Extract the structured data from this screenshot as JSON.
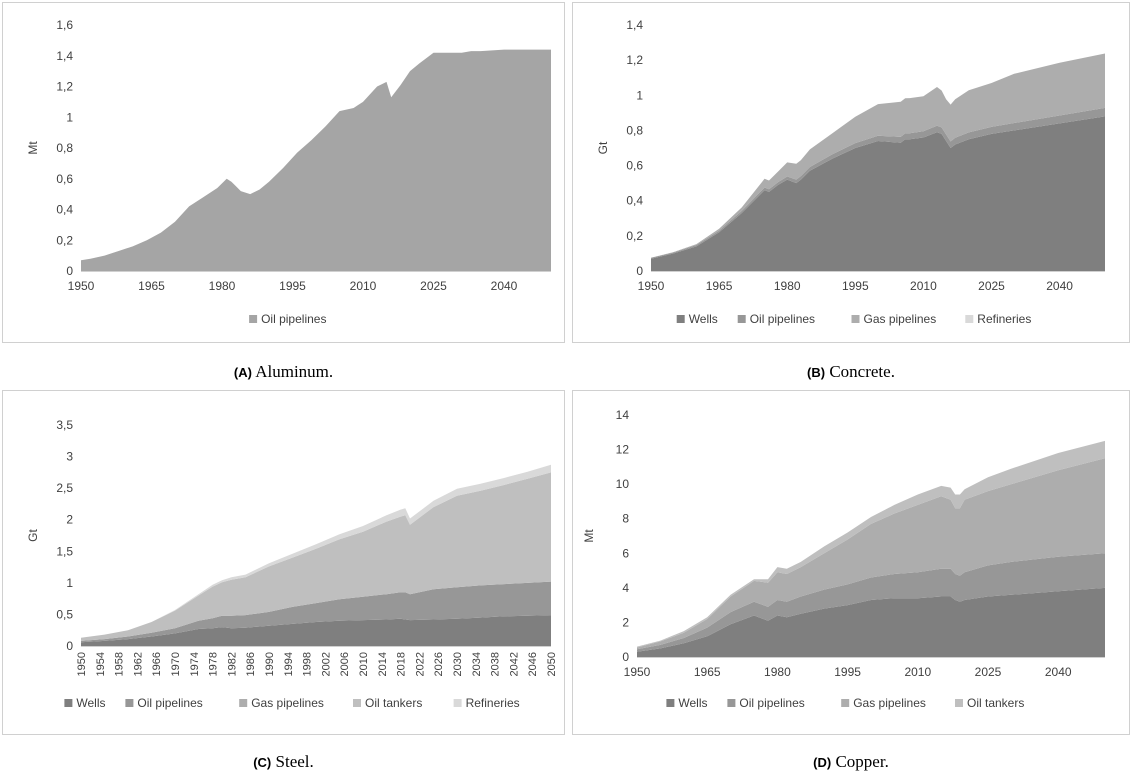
{
  "figures": [
    {
      "caption_letter": "(A)",
      "caption_text": "Aluminum."
    },
    {
      "caption_letter": "(B)",
      "caption_text": "Concrete."
    },
    {
      "caption_letter": "(C)",
      "caption_text": "Steel."
    },
    {
      "caption_letter": "(D)",
      "caption_text": "Copper."
    }
  ],
  "colors": {
    "Wells": "#7f7f7f",
    "Oil pipelines": "#979797",
    "Gas pipelines": "#adadad",
    "Oil tankers": "#bfbfbf",
    "Refineries": "#d9d9d9",
    "oil_pipelines_single": "#a5a5a5"
  },
  "chart_data": [
    {
      "type": "area",
      "stacked": true,
      "ylabel": "Mt",
      "xlabel": "",
      "title": "",
      "ylim": [
        0,
        1.6
      ],
      "yticks": [
        "0",
        "0,2",
        "0,4",
        "0,6",
        "0,8",
        "1",
        "1,2",
        "1,4",
        "1,6"
      ],
      "xlim": [
        1950,
        2050
      ],
      "xticks": [
        "1950",
        "1965",
        "1980",
        "1995",
        "2010",
        "2025",
        "2040"
      ],
      "x": [
        1950,
        1952,
        1955,
        1958,
        1961,
        1964,
        1967,
        1970,
        1973,
        1976,
        1979,
        1980,
        1981,
        1982,
        1983,
        1984,
        1985,
        1986,
        1988,
        1990,
        1993,
        1996,
        1999,
        2002,
        2005,
        2008,
        2009,
        2010,
        2013,
        2015,
        2016,
        2017,
        2018,
        2020,
        2022,
        2025,
        2028,
        2031,
        2033,
        2035,
        2040,
        2045,
        2050
      ],
      "legend": "bottom",
      "series": [
        {
          "name": "Oil pipelines",
          "values": [
            0.07,
            0.08,
            0.1,
            0.13,
            0.16,
            0.2,
            0.25,
            0.32,
            0.42,
            0.48,
            0.54,
            0.57,
            0.6,
            0.58,
            0.55,
            0.52,
            0.51,
            0.5,
            0.53,
            0.58,
            0.67,
            0.77,
            0.85,
            0.94,
            1.04,
            1.06,
            1.08,
            1.1,
            1.2,
            1.23,
            1.13,
            1.17,
            1.21,
            1.3,
            1.35,
            1.42,
            1.42,
            1.42,
            1.43,
            1.43,
            1.44,
            1.44,
            1.44
          ]
        }
      ]
    },
    {
      "type": "area",
      "stacked": true,
      "ylabel": "Gt",
      "xlabel": "",
      "title": "",
      "ylim": [
        0,
        1.4
      ],
      "yticks": [
        "0",
        "0,2",
        "0,4",
        "0,6",
        "0,8",
        "1",
        "1,2",
        "1,4"
      ],
      "xlim": [
        1950,
        2050
      ],
      "xticks": [
        "1950",
        "1965",
        "1980",
        "1995",
        "2010",
        "2025",
        "2040"
      ],
      "x": [
        1950,
        1955,
        1960,
        1965,
        1970,
        1975,
        1976,
        1978,
        1980,
        1982,
        1983,
        1985,
        1990,
        1995,
        2000,
        2005,
        2006,
        2007,
        2010,
        2013,
        2014,
        2015,
        2016,
        2017,
        2020,
        2025,
        2030,
        2040,
        2050
      ],
      "legend": "bottom",
      "series": [
        {
          "name": "Wells",
          "values": [
            0.07,
            0.1,
            0.14,
            0.22,
            0.33,
            0.46,
            0.45,
            0.49,
            0.52,
            0.5,
            0.52,
            0.57,
            0.64,
            0.7,
            0.74,
            0.73,
            0.75,
            0.75,
            0.76,
            0.79,
            0.78,
            0.74,
            0.7,
            0.72,
            0.75,
            0.78,
            0.8,
            0.84,
            0.88
          ]
        },
        {
          "name": "Oil pipelines",
          "values": [
            0.005,
            0.006,
            0.008,
            0.01,
            0.012,
            0.015,
            0.015,
            0.016,
            0.018,
            0.02,
            0.02,
            0.022,
            0.025,
            0.028,
            0.03,
            0.033,
            0.033,
            0.034,
            0.035,
            0.037,
            0.037,
            0.037,
            0.037,
            0.038,
            0.039,
            0.04,
            0.042,
            0.045,
            0.048
          ]
        },
        {
          "name": "Gas pipelines",
          "values": [
            0,
            0.002,
            0.005,
            0.01,
            0.02,
            0.05,
            0.05,
            0.06,
            0.08,
            0.09,
            0.09,
            0.1,
            0.12,
            0.15,
            0.18,
            0.2,
            0.2,
            0.2,
            0.2,
            0.22,
            0.21,
            0.2,
            0.21,
            0.22,
            0.24,
            0.25,
            0.28,
            0.3,
            0.31
          ]
        },
        {
          "name": "Refineries",
          "values": [
            0,
            0,
            0,
            0,
            0,
            0,
            0,
            0,
            0,
            0,
            0,
            0,
            0,
            0,
            0,
            0,
            0,
            0,
            0,
            0,
            0,
            0,
            0,
            0,
            0,
            0,
            0,
            0,
            0
          ]
        }
      ]
    },
    {
      "type": "area",
      "stacked": true,
      "ylabel": "Gt",
      "xlabel": "",
      "title": "",
      "ylim": [
        0,
        3.5
      ],
      "yticks": [
        "0",
        "0,5",
        "1",
        "1,5",
        "2",
        "2,5",
        "3",
        "3,5"
      ],
      "xlim": [
        1950,
        2050
      ],
      "xticks": [
        "1950",
        "1954",
        "1958",
        "1962",
        "1966",
        "1970",
        "1974",
        "1978",
        "1982",
        "1986",
        "1990",
        "1994",
        "1998",
        "2002",
        "2006",
        "2010",
        "2014",
        "2018",
        "2022",
        "2026",
        "2030",
        "2034",
        "2038",
        "2042",
        "2046",
        "2050"
      ],
      "x": [
        1950,
        1955,
        1960,
        1965,
        1970,
        1975,
        1978,
        1980,
        1982,
        1985,
        1990,
        1995,
        2000,
        2005,
        2010,
        2015,
        2018,
        2019,
        2020,
        2025,
        2030,
        2035,
        2040,
        2045,
        2050
      ],
      "legend": "bottom",
      "series": [
        {
          "name": "Wells",
          "values": [
            0.06,
            0.08,
            0.11,
            0.15,
            0.2,
            0.27,
            0.28,
            0.3,
            0.28,
            0.29,
            0.32,
            0.35,
            0.38,
            0.4,
            0.41,
            0.42,
            0.43,
            0.42,
            0.41,
            0.42,
            0.43,
            0.45,
            0.47,
            0.48,
            0.49
          ]
        },
        {
          "name": "Oil pipelines",
          "values": [
            0.02,
            0.03,
            0.04,
            0.06,
            0.08,
            0.13,
            0.16,
            0.18,
            0.2,
            0.2,
            0.22,
            0.27,
            0.3,
            0.34,
            0.37,
            0.4,
            0.42,
            0.43,
            0.41,
            0.48,
            0.5,
            0.51,
            0.51,
            0.52,
            0.53
          ]
        },
        {
          "name": "Gas pipelines",
          "values": [
            0,
            0,
            0,
            0,
            0,
            0,
            0,
            0,
            0,
            0,
            0,
            0,
            0,
            0,
            0,
            0,
            0,
            0,
            0,
            0,
            0,
            0,
            0,
            0,
            0
          ]
        },
        {
          "name": "Oil tankers",
          "values": [
            0.05,
            0.07,
            0.1,
            0.17,
            0.28,
            0.4,
            0.5,
            0.53,
            0.57,
            0.6,
            0.72,
            0.78,
            0.86,
            0.95,
            1.03,
            1.15,
            1.2,
            1.22,
            1.1,
            1.3,
            1.45,
            1.5,
            1.57,
            1.65,
            1.73
          ]
        },
        {
          "name": "Refineries",
          "values": [
            0,
            0,
            0,
            0,
            0.01,
            0.02,
            0.03,
            0.03,
            0.04,
            0.04,
            0.05,
            0.06,
            0.07,
            0.08,
            0.09,
            0.1,
            0.11,
            0.11,
            0.1,
            0.1,
            0.11,
            0.11,
            0.11,
            0.11,
            0.12
          ]
        }
      ]
    },
    {
      "type": "area",
      "stacked": true,
      "ylabel": "Mt",
      "xlabel": "",
      "title": "",
      "ylim": [
        0,
        14
      ],
      "yticks": [
        "0",
        "2",
        "4",
        "6",
        "8",
        "10",
        "12",
        "14"
      ],
      "xlim": [
        1950,
        2050
      ],
      "xticks": [
        "1950",
        "1965",
        "1980",
        "1995",
        "2010",
        "2025",
        "2040"
      ],
      "x": [
        1950,
        1955,
        1960,
        1965,
        1970,
        1975,
        1978,
        1980,
        1982,
        1985,
        1990,
        1995,
        2000,
        2005,
        2010,
        2015,
        2017,
        2018,
        2019,
        2020,
        2025,
        2030,
        2040,
        2050
      ],
      "legend": "bottom",
      "series": [
        {
          "name": "Wells",
          "values": [
            0.3,
            0.5,
            0.8,
            1.2,
            1.9,
            2.4,
            2.1,
            2.4,
            2.3,
            2.5,
            2.8,
            3.0,
            3.3,
            3.4,
            3.4,
            3.5,
            3.5,
            3.3,
            3.2,
            3.3,
            3.5,
            3.6,
            3.8,
            4.0
          ]
        },
        {
          "name": "Oil pipelines",
          "values": [
            0.15,
            0.2,
            0.3,
            0.5,
            0.7,
            0.8,
            0.8,
            0.9,
            0.9,
            1.0,
            1.1,
            1.2,
            1.3,
            1.4,
            1.5,
            1.6,
            1.6,
            1.5,
            1.5,
            1.6,
            1.8,
            1.9,
            2.0,
            2.0
          ]
        },
        {
          "name": "Gas pipelines",
          "values": [
            0.1,
            0.2,
            0.3,
            0.5,
            0.9,
            1.2,
            1.4,
            1.6,
            1.6,
            1.7,
            2.1,
            2.6,
            3.1,
            3.5,
            3.9,
            4.2,
            4.0,
            3.8,
            3.9,
            4.2,
            4.3,
            4.5,
            5.0,
            5.5
          ]
        },
        {
          "name": "Oil tankers",
          "values": [
            0.05,
            0.05,
            0.1,
            0.1,
            0.1,
            0.1,
            0.2,
            0.3,
            0.3,
            0.3,
            0.4,
            0.4,
            0.4,
            0.5,
            0.6,
            0.6,
            0.7,
            0.8,
            0.8,
            0.6,
            0.8,
            0.9,
            1.0,
            1.0
          ]
        }
      ]
    }
  ]
}
